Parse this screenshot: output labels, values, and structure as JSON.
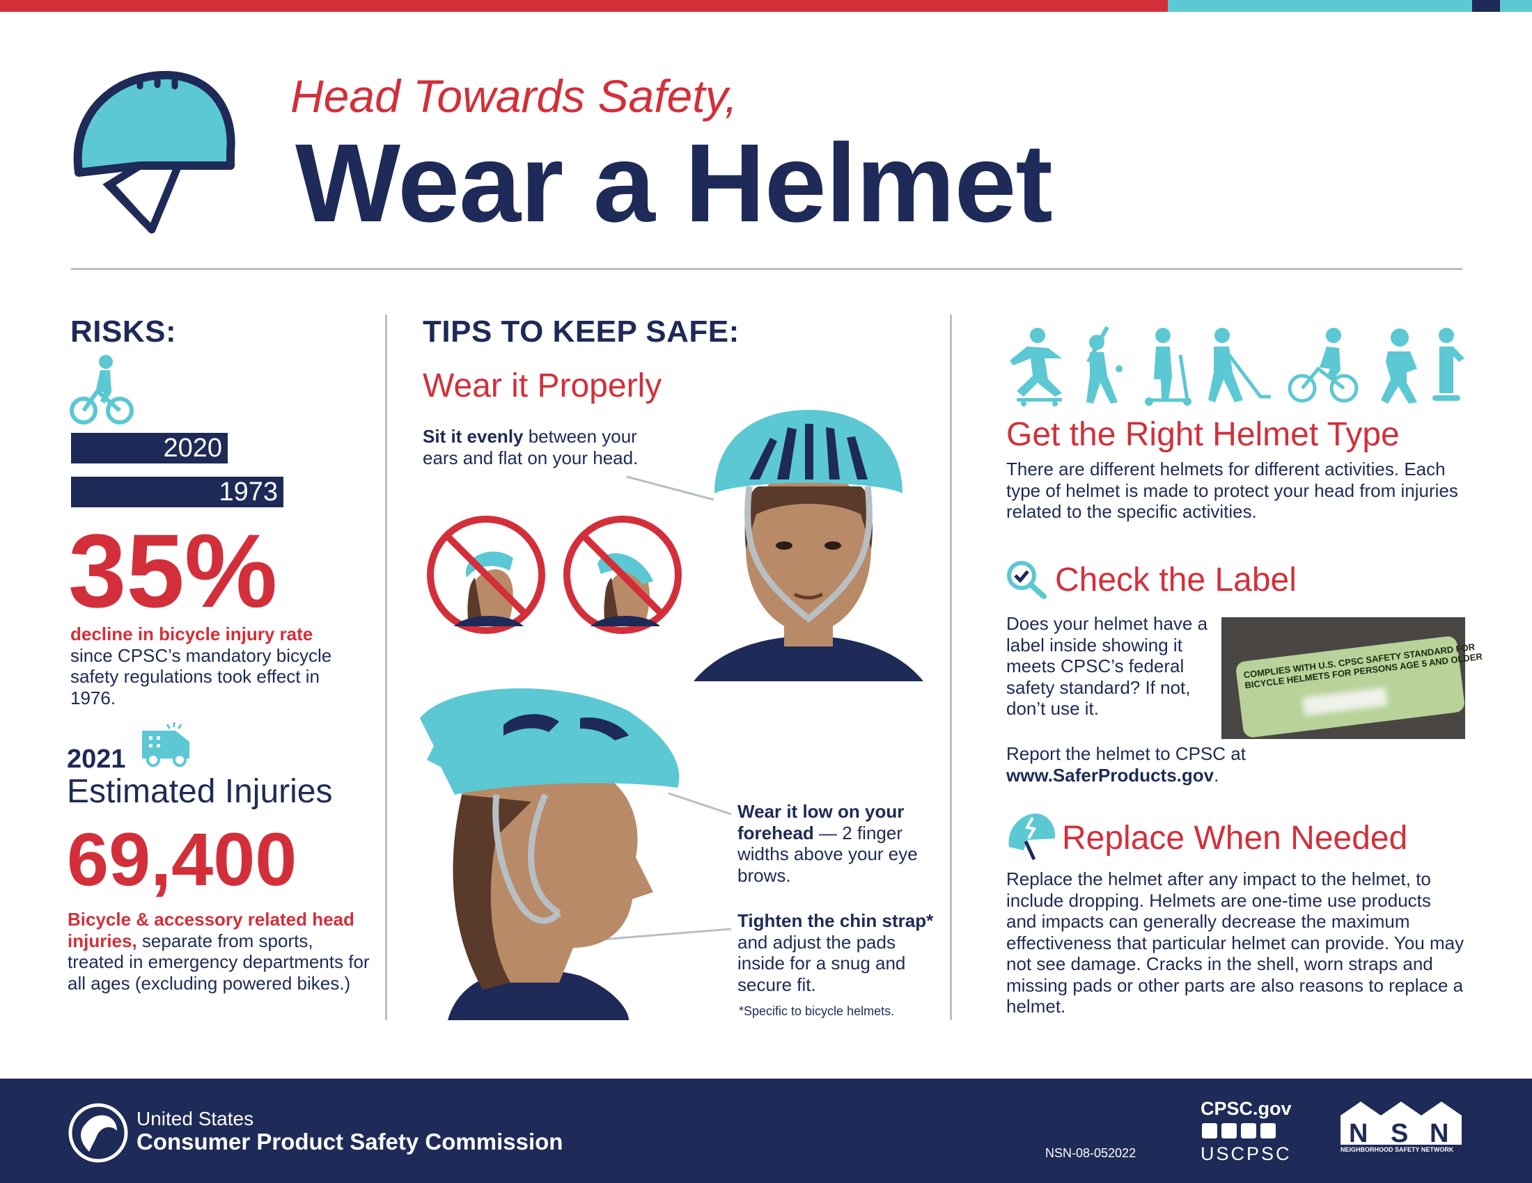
{
  "colors": {
    "navy": "#1e2a57",
    "red": "#d32f3a",
    "teal": "#5bc8d3"
  },
  "header": {
    "subtitle": "Head Towards Safety,",
    "title": "Wear a Helmet",
    "icon": "helmet-icon"
  },
  "risks": {
    "heading": "RISKS:",
    "bars": [
      {
        "label": "2020",
        "value": 2020
      },
      {
        "label": "1973",
        "value": 1973
      }
    ],
    "stat": "35%",
    "stat_bold": "decline in bicycle injury rate",
    "stat_rest": "since CPSC’s mandatory bicycle safety regulations took effect in 1976.",
    "year": "2021",
    "injuries_label": "Estimated Injuries",
    "injuries": "69,400",
    "inj_bold": "Bicycle & accessory related head injuries,",
    "inj_rest": " separate from sports, treated in emergency departments for all ages (excluding powered bikes.)"
  },
  "tips": {
    "heading": "TIPS TO KEEP SAFE:",
    "subheading": "Wear it Properly",
    "tip1_bold": "Sit it evenly",
    "tip1_rest": " between your ears and flat on your head.",
    "tip2_bold": "Wear it low on your forehead",
    "tip2_rest": " — 2 finger widths above your eye brows.",
    "tip3_bold": "Tighten the chin strap*",
    "tip3_rest": " and adjust the pads inside for a snug and secure fit.",
    "footnote": "*Specific to bicycle helmets."
  },
  "right": {
    "type_title": "Get the Right Helmet Type",
    "type_text": "There are different helmets for different activities. Each type of helmet is made to protect your head from injuries related to the specific activities.",
    "label_title": "Check the Label",
    "label_text": "Does your helmet have a label inside showing it meets CPSC’s federal safety standard? If not, don’t use it.",
    "label_sticker_1": "COMPLIES WITH U.S. CPSC SAFETY STANDARD FOR",
    "label_sticker_2": "BICYCLE HELMETS FOR PERSONS AGE 5 AND OLDER",
    "report_text": "Report the helmet to CPSC at",
    "report_link": "www.SaferProducts.gov",
    "report_end": ".",
    "replace_title": "Replace When Needed",
    "replace_text": "Replace the helmet after any impact to the helmet, to include dropping. Helmets are one-time use products and impacts can generally decrease the maximum effectiveness that particular helmet can provide. You may not see damage. Cracks in the shell, worn straps and missing pads or other parts are also reasons to replace a helmet."
  },
  "footer": {
    "org_line1": "United States",
    "org_line2": "Consumer Product Safety Commission",
    "code": "NSN-08-052022",
    "site": "CPSC.gov",
    "handle": "USCPSC",
    "social": [
      "facebook-icon",
      "instagram-icon",
      "twitter-icon",
      "youtube-icon"
    ],
    "nsn_logo": "NSN",
    "nsn_sub": "NEIGHBORHOOD SAFETY NETWORK"
  }
}
